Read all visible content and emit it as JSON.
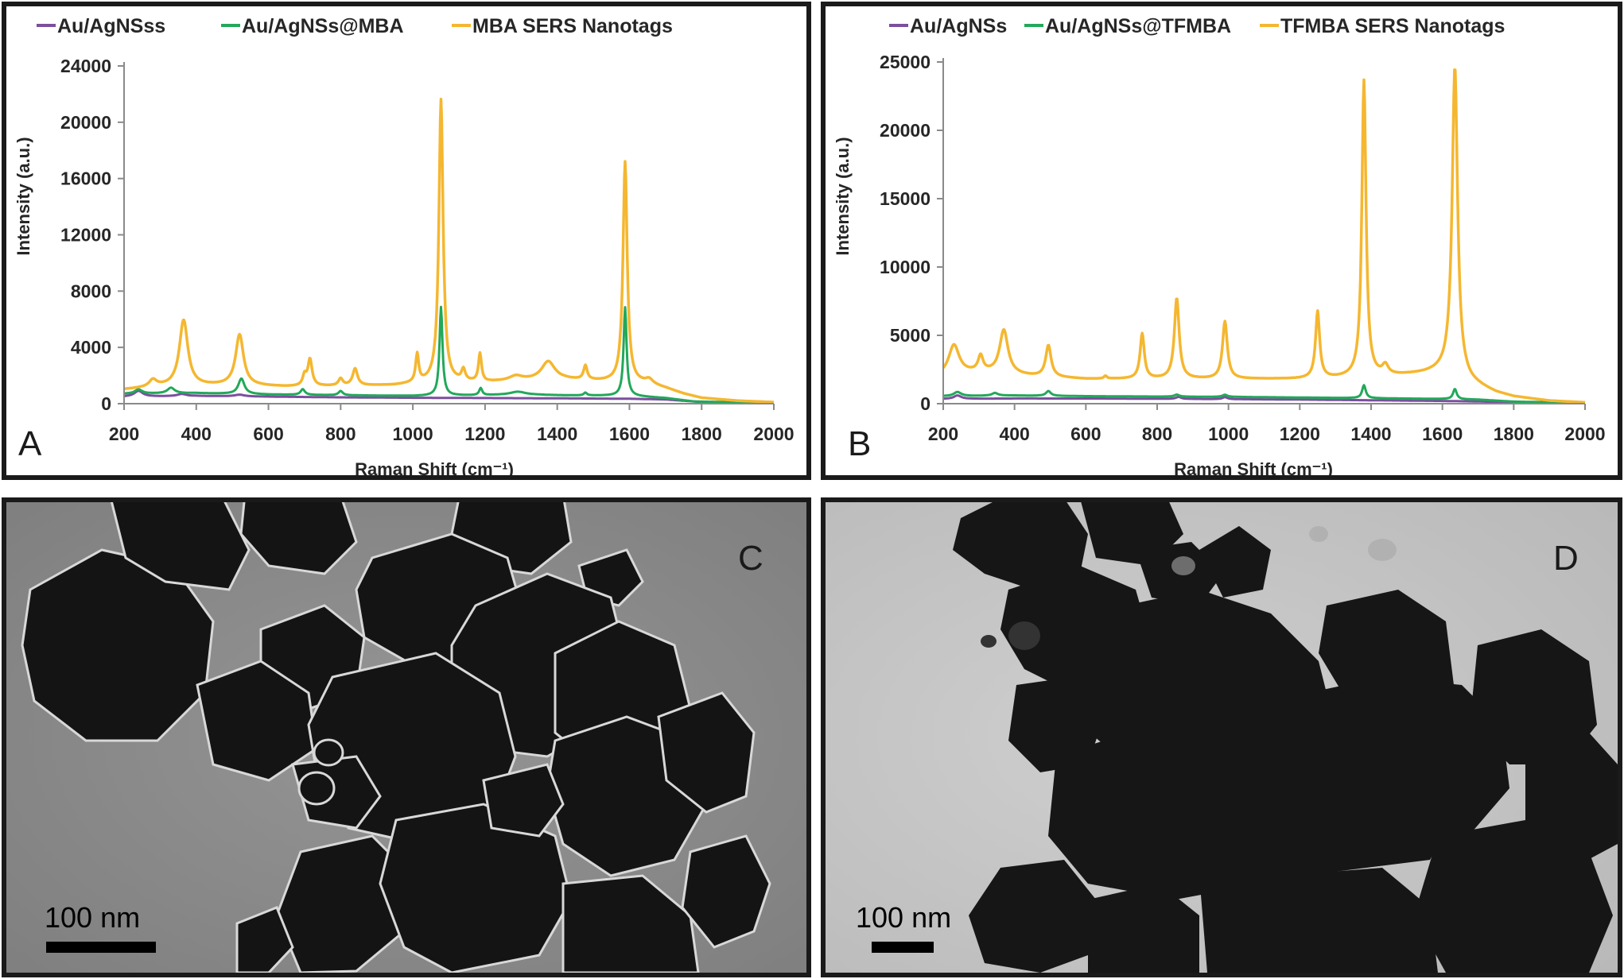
{
  "chart_data": [
    {
      "type": "line",
      "panel_label": "A",
      "xlabel": "Raman Shift (cm⁻¹)",
      "ylabel": "Intensity (a.u.)",
      "xlim": [
        200,
        2000
      ],
      "ylim": [
        0,
        24000
      ],
      "x_ticks": [
        200,
        400,
        600,
        800,
        1000,
        1200,
        1400,
        1600,
        1800,
        2000
      ],
      "y_ticks": [
        0,
        4000,
        8000,
        12000,
        16000,
        20000,
        24000
      ],
      "legend_position": "top",
      "series": [
        {
          "name": "Au/AgNSss",
          "color": "#7b4f9e",
          "base": [
            [
              200,
              500
            ],
            [
              400,
              550
            ],
            [
              600,
              500
            ],
            [
              800,
              450
            ],
            [
              1000,
              420
            ],
            [
              1200,
              400
            ],
            [
              1400,
              380
            ],
            [
              1600,
              350
            ],
            [
              1700,
              300
            ],
            [
              1800,
              120
            ],
            [
              2000,
              50
            ]
          ],
          "peaks": [
            [
              240,
              400,
              14
            ],
            [
              360,
              150,
              14
            ],
            [
              520,
              120,
              16
            ]
          ]
        },
        {
          "name": "Au/AgNSs@MBA",
          "color": "#22a85a",
          "base": [
            [
              200,
              700
            ],
            [
              400,
              750
            ],
            [
              600,
              650
            ],
            [
              800,
              600
            ],
            [
              1000,
              550
            ],
            [
              1200,
              600
            ],
            [
              1300,
              650
            ],
            [
              1400,
              600
            ],
            [
              1600,
              550
            ],
            [
              1700,
              400
            ],
            [
              1780,
              150
            ],
            [
              2000,
              60
            ]
          ],
          "peaks": [
            [
              240,
              300,
              12
            ],
            [
              330,
              400,
              12
            ],
            [
              525,
              1100,
              10
            ],
            [
              695,
              400,
              7
            ],
            [
              800,
              300,
              7
            ],
            [
              1078,
              6300,
              5
            ],
            [
              1188,
              500,
              5
            ],
            [
              1290,
              200,
              25
            ],
            [
              1478,
              200,
              5
            ],
            [
              1588,
              6300,
              5
            ]
          ]
        },
        {
          "name": "MBA SERS Nanotags",
          "color": "#f5b730",
          "base": [
            [
              200,
              1000
            ],
            [
              300,
              1200
            ],
            [
              500,
              1300
            ],
            [
              650,
              1200
            ],
            [
              800,
              1250
            ],
            [
              950,
              1300
            ],
            [
              1050,
              1500
            ],
            [
              1200,
              1500
            ],
            [
              1300,
              1650
            ],
            [
              1420,
              1700
            ],
            [
              1500,
              1600
            ],
            [
              1650,
              1400
            ],
            [
              1700,
              1100
            ],
            [
              1750,
              700
            ],
            [
              1800,
              400
            ],
            [
              1900,
              200
            ],
            [
              2000,
              100
            ]
          ],
          "peaks": [
            [
              280,
              500,
              12
            ],
            [
              365,
              4700,
              14
            ],
            [
              520,
              3600,
              13
            ],
            [
              700,
              700,
              6
            ],
            [
              715,
              1900,
              7
            ],
            [
              800,
              500,
              7
            ],
            [
              840,
              1200,
              8
            ],
            [
              1012,
              2000,
              5
            ],
            [
              1078,
              20100,
              7
            ],
            [
              1140,
              800,
              6
            ],
            [
              1186,
              2000,
              5
            ],
            [
              1285,
              300,
              20
            ],
            [
              1375,
              1300,
              22
            ],
            [
              1478,
              1000,
              6
            ],
            [
              1588,
              15700,
              7
            ],
            [
              1655,
              300,
              12
            ]
          ]
        }
      ]
    },
    {
      "type": "line",
      "panel_label": "B",
      "xlabel": "Raman Shift (cm⁻¹)",
      "ylabel": "Intensity (a.u.)",
      "xlim": [
        200,
        2000
      ],
      "ylim": [
        0,
        25000
      ],
      "x_ticks": [
        200,
        400,
        600,
        800,
        1000,
        1200,
        1400,
        1600,
        1800,
        2000
      ],
      "y_ticks": [
        0,
        5000,
        10000,
        15000,
        20000,
        25000
      ],
      "legend_position": "top",
      "series": [
        {
          "name": "Au/AgNSs",
          "color": "#7b4f9e",
          "base": [
            [
              200,
              350
            ],
            [
              400,
              380
            ],
            [
              600,
              380
            ],
            [
              800,
              360
            ],
            [
              1000,
              330
            ],
            [
              1200,
              300
            ],
            [
              1400,
              250
            ],
            [
              1600,
              200
            ],
            [
              1700,
              160
            ],
            [
              1800,
              100
            ],
            [
              2000,
              40
            ]
          ],
          "peaks": [
            [
              240,
              250,
              12
            ],
            [
              860,
              150,
              8
            ],
            [
              990,
              150,
              8
            ]
          ]
        },
        {
          "name": "Au/AgNSs@TFMBA",
          "color": "#22a85a",
          "base": [
            [
              200,
              550
            ],
            [
              400,
              600
            ],
            [
              600,
              550
            ],
            [
              800,
              520
            ],
            [
              1000,
              500
            ],
            [
              1200,
              450
            ],
            [
              1400,
              400
            ],
            [
              1600,
              350
            ],
            [
              1700,
              300
            ],
            [
              1800,
              150
            ],
            [
              2000,
              60
            ]
          ],
          "peaks": [
            [
              240,
              300,
              12
            ],
            [
              345,
              200,
              10
            ],
            [
              495,
              350,
              8
            ],
            [
              855,
              150,
              8
            ],
            [
              990,
              150,
              8
            ],
            [
              1380,
              950,
              6
            ],
            [
              1635,
              750,
              6
            ]
          ]
        },
        {
          "name": "TFMBA SERS Nanotags",
          "color": "#f5b730",
          "base": [
            [
              200,
              2000
            ],
            [
              300,
              2300
            ],
            [
              450,
              2000
            ],
            [
              600,
              1800
            ],
            [
              800,
              1800
            ],
            [
              1000,
              1800
            ],
            [
              1200,
              1800
            ],
            [
              1300,
              1850
            ],
            [
              1450,
              2000
            ],
            [
              1550,
              2200
            ],
            [
              1620,
              2400
            ],
            [
              1680,
              1500
            ],
            [
              1750,
              800
            ],
            [
              1800,
              500
            ],
            [
              1900,
              200
            ],
            [
              2000,
              80
            ]
          ],
          "peaks": [
            [
              230,
              2200,
              18
            ],
            [
              305,
              1100,
              8
            ],
            [
              370,
              3200,
              14
            ],
            [
              495,
              2300,
              9
            ],
            [
              655,
              200,
              5
            ],
            [
              758,
              3300,
              7
            ],
            [
              855,
              5900,
              8
            ],
            [
              990,
              4200,
              8
            ],
            [
              1250,
              4900,
              7
            ],
            [
              1380,
              21700,
              7
            ],
            [
              1440,
              700,
              10
            ],
            [
              1635,
              22500,
              9
            ]
          ]
        }
      ]
    }
  ],
  "panels": {
    "A": {
      "label": "A"
    },
    "B": {
      "label": "B"
    },
    "C": {
      "label": "C",
      "scale_bar": "100 nm"
    },
    "D": {
      "label": "D",
      "scale_bar": "100 nm"
    }
  }
}
